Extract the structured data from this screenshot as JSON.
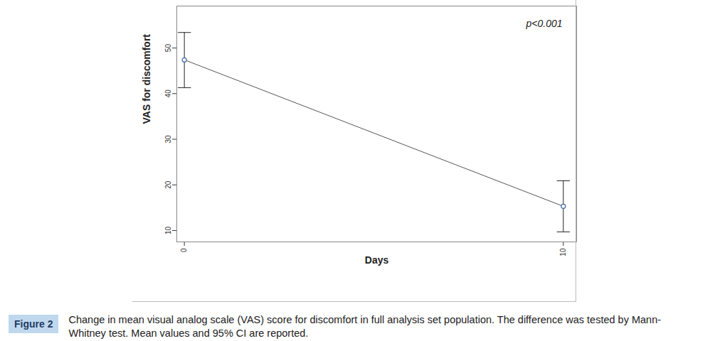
{
  "chart_data": {
    "type": "line",
    "x_label": "Days",
    "y_label": "VAS for discomfort",
    "annotation": "p<0.001",
    "figure_label": "Figure 2",
    "caption": "Change in mean visual analog scale (VAS) score for discomfort in full analysis set population. The difference was tested by Mann-Whitney test. Mean values and 95% CI are reported.",
    "x": [
      0,
      10
    ],
    "values": [
      47.4,
      15.3
    ],
    "ci_lower": [
      41.3,
      9.7
    ],
    "ci_upper": [
      53.4,
      20.9
    ],
    "color": "#3f6aa8",
    "marker": "circle",
    "xlim": [
      -0.2,
      10.35
    ],
    "ylim": [
      7.5,
      59.2
    ],
    "xticks": [
      0,
      10
    ],
    "yticks": [
      10,
      20,
      30,
      40,
      50
    ],
    "grid": false
  }
}
